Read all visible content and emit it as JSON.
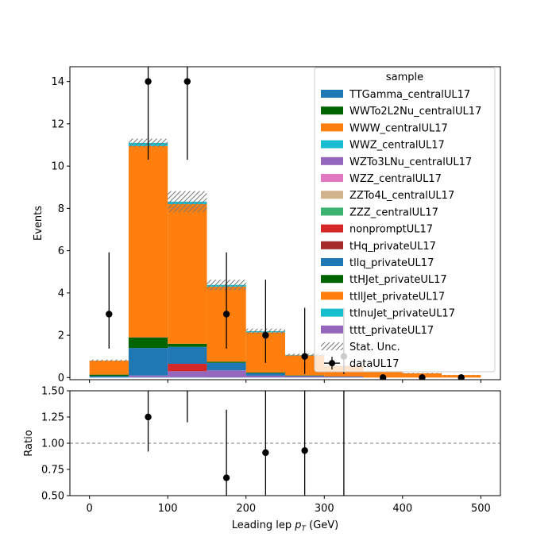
{
  "chart_data": {
    "type": "bar",
    "stacked": true,
    "bin_edges": [
      0,
      50,
      100,
      150,
      200,
      250,
      300,
      350,
      400,
      450,
      500
    ],
    "xlabel": "Leading lep p_T (GeV)",
    "xlabel_main": "Leading lep ",
    "xlabel_sym": "p",
    "xlabel_sub": "T",
    "xlabel_unit": " (GeV)",
    "xlim": [
      -25,
      525
    ],
    "xticks": [
      0,
      100,
      200,
      300,
      400,
      500
    ],
    "main": {
      "ylabel": "Events",
      "ylim": [
        -0.1,
        14.7
      ],
      "yticks": [
        0,
        2,
        4,
        6,
        8,
        10,
        12,
        14
      ]
    },
    "ratio": {
      "ylabel": "Ratio",
      "ylim": [
        0.5,
        1.5
      ],
      "yticks": [
        "0.50",
        "0.75",
        "1.00",
        "1.25",
        "1.50"
      ],
      "reference_line": 1.0,
      "points": [
        {
          "x": 75,
          "y": 1.25,
          "err": [
            0.33,
            0.8
          ]
        },
        {
          "x": 125,
          "y": null,
          "err_top": 1.2
        },
        {
          "x": 175,
          "y": 0.67,
          "err": [
            0.67,
            0.65
          ]
        },
        {
          "x": 225,
          "y": 0.91,
          "err": [
            0.91,
            1.2
          ]
        },
        {
          "x": 275,
          "y": 0.93,
          "err": [
            0.93,
            2.0
          ]
        },
        {
          "x": 325,
          "y": null,
          "err_top": 0.5,
          "err_bottom": 0.5
        }
      ]
    },
    "legend": {
      "title": "sample",
      "placement": "top-right"
    },
    "series": [
      {
        "name": "TTGamma_centralUL17",
        "color": "#1f77b4",
        "values": [
          0.02,
          0.02,
          0.02,
          0.01,
          0.01,
          0.0,
          0.0,
          0.0,
          0.0,
          0.0
        ]
      },
      {
        "name": "WWTo2L2Nu_centralUL17",
        "color": "#006400",
        "values": [
          0.0,
          0.0,
          0.0,
          0.0,
          0.0,
          0.0,
          0.0,
          0.0,
          0.0,
          0.0
        ]
      },
      {
        "name": "WWW_centralUL17",
        "color": "#ff7f0e",
        "values": [
          0.0,
          0.0,
          0.0,
          0.0,
          0.0,
          0.0,
          0.0,
          0.0,
          0.0,
          0.0
        ]
      },
      {
        "name": "WWZ_centralUL17",
        "color": "#17becf",
        "values": [
          0.0,
          0.0,
          0.0,
          0.0,
          0.0,
          0.0,
          0.0,
          0.0,
          0.0,
          0.0
        ]
      },
      {
        "name": "WZTo3LNu_centralUL17",
        "color": "#9467bd",
        "values": [
          0.0,
          0.08,
          0.28,
          0.33,
          0.08,
          0.05,
          0.03,
          0.0,
          0.0,
          0.0
        ]
      },
      {
        "name": "WZZ_centralUL17",
        "color": "#e377c2",
        "values": [
          0.0,
          0.0,
          0.0,
          0.0,
          0.0,
          0.0,
          0.0,
          0.0,
          0.0,
          0.0
        ]
      },
      {
        "name": "ZZTo4L_centralUL17",
        "color": "#d2b48c",
        "values": [
          0.0,
          0.0,
          0.0,
          0.0,
          0.0,
          0.0,
          0.0,
          0.0,
          0.0,
          0.0
        ]
      },
      {
        "name": "ZZZ_centralUL17",
        "color": "#3cb371",
        "values": [
          0.0,
          0.0,
          0.0,
          0.0,
          0.0,
          0.0,
          0.0,
          0.0,
          0.0,
          0.0
        ]
      },
      {
        "name": "nonpromptUL17",
        "color": "#d62728",
        "values": [
          0.0,
          0.0,
          0.35,
          0.0,
          0.0,
          0.0,
          0.0,
          0.0,
          0.0,
          0.0
        ]
      },
      {
        "name": "tHq_privateUL17",
        "color": "#a52a2a",
        "values": [
          0.0,
          0.0,
          0.0,
          0.0,
          0.0,
          0.0,
          0.0,
          0.0,
          0.0,
          0.0
        ]
      },
      {
        "name": "tllq_privateUL17",
        "color": "#1f77b4",
        "values": [
          0.05,
          1.3,
          0.8,
          0.36,
          0.12,
          0.03,
          0.02,
          0.0,
          0.0,
          0.0
        ]
      },
      {
        "name": "ttHJet_privateUL17",
        "color": "#006400",
        "values": [
          0.07,
          0.5,
          0.15,
          0.05,
          0.03,
          0.02,
          0.0,
          0.0,
          0.0,
          0.0
        ]
      },
      {
        "name": "ttllJet_privateUL17",
        "color": "#ff7f0e",
        "values": [
          0.66,
          9.05,
          6.6,
          3.55,
          1.9,
          0.95,
          0.5,
          0.3,
          0.2,
          0.12
        ]
      },
      {
        "name": "ttlnuJet_privateUL17",
        "color": "#17becf",
        "values": [
          0.0,
          0.15,
          0.12,
          0.08,
          0.05,
          0.02,
          0.0,
          0.0,
          0.0,
          0.0
        ]
      },
      {
        "name": "tttt_privateUL17",
        "color": "#9467bd",
        "values": [
          0.0,
          0.0,
          0.0,
          0.0,
          0.0,
          0.0,
          0.0,
          0.0,
          0.0,
          0.0
        ]
      }
    ],
    "stat_unc": {
      "name": "Stat. Unc.",
      "halfwidth": [
        0.05,
        0.2,
        0.5,
        0.25,
        0.12,
        0.06,
        0.04,
        0.03,
        0.02,
        0.01
      ]
    },
    "data": {
      "name": "dataUL17",
      "points": [
        {
          "x": 25,
          "y": 3,
          "lo": 1.37,
          "hi": 5.92
        },
        {
          "x": 75,
          "y": 14,
          "lo": 10.3,
          "hi": 18.5
        },
        {
          "x": 125,
          "y": 14,
          "lo": 10.3,
          "hi": 18.5
        },
        {
          "x": 175,
          "y": 3,
          "lo": 1.37,
          "hi": 5.92
        },
        {
          "x": 225,
          "y": 2,
          "lo": 0.69,
          "hi": 4.63
        },
        {
          "x": 275,
          "y": 1,
          "lo": 0.17,
          "hi": 3.3
        },
        {
          "x": 325,
          "y": 1,
          "lo": 0.17,
          "hi": 3.3
        },
        {
          "x": 375,
          "y": 0,
          "lo": 0,
          "hi": 0
        },
        {
          "x": 425,
          "y": 0,
          "lo": 0,
          "hi": 0
        },
        {
          "x": 475,
          "y": 0,
          "lo": 0,
          "hi": 0
        }
      ]
    }
  }
}
